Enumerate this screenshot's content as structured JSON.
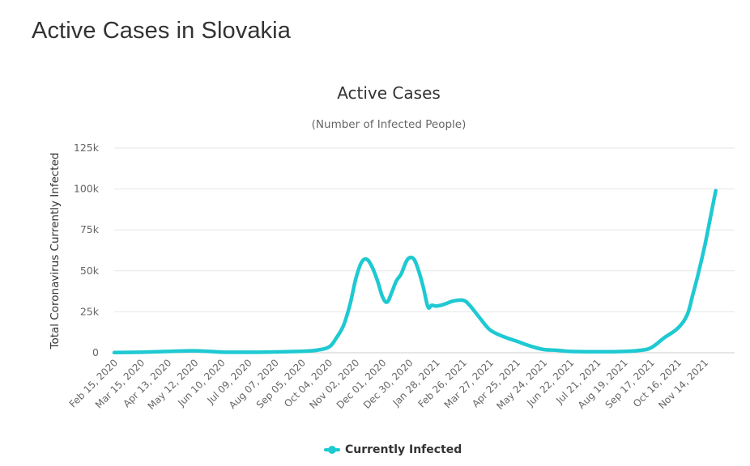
{
  "page": {
    "title": "Active Cases in Slovakia"
  },
  "chart": {
    "title": "Active Cases",
    "subtitle": "(Number of Infected People)",
    "y_axis_title": "Total Coronavirus Currently Infected",
    "legend_label": "Currently Infected",
    "line_color": "#1ec9d2"
  },
  "chart_data": {
    "type": "line",
    "title": "Active Cases",
    "subtitle": "(Number of Infected People)",
    "xlabel": "",
    "ylabel": "Total Coronavirus Currently Infected",
    "ylim": [
      0,
      125000
    ],
    "yticks": [
      0,
      25000,
      50000,
      75000,
      100000,
      125000
    ],
    "ytick_labels": [
      "0",
      "25k",
      "50k",
      "75k",
      "100k",
      "125k"
    ],
    "grid": true,
    "legend_position": "bottom-center",
    "x_tick_labels": [
      "Feb 15, 2020",
      "Mar 15, 2020",
      "Apr 13, 2020",
      "May 12, 2020",
      "Jun 10, 2020",
      "Jul 09, 2020",
      "Aug 07, 2020",
      "Sep 05, 2020",
      "Oct 04, 2020",
      "Nov 02, 2020",
      "Dec 01, 2020",
      "Dec 30, 2020",
      "Jan 28, 2021",
      "Feb 26, 2021",
      "Mar 27, 2021",
      "Apr 25, 2021",
      "May 24, 2021",
      "Jun 22, 2021",
      "Jul 21, 2021",
      "Aug 19, 2021",
      "Sep 17, 2021",
      "Oct 16, 2021",
      "Nov 14, 2021"
    ],
    "series": [
      {
        "name": "Currently Infected",
        "color": "#1ec9d2",
        "x": [
          "Feb 15, 2020",
          "Mar 15, 2020",
          "Apr 13, 2020",
          "May 12, 2020",
          "Jun 10, 2020",
          "Jul 09, 2020",
          "Aug 07, 2020",
          "Sep 05, 2020",
          "Sep 20, 2020",
          "Oct 04, 2020",
          "Oct 12, 2020",
          "Oct 20, 2020",
          "Oct 27, 2020",
          "Nov 02, 2020",
          "Nov 08, 2020",
          "Nov 14, 2020",
          "Nov 20, 2020",
          "Nov 26, 2020",
          "Dec 01, 2020",
          "Dec 06, 2020",
          "Dec 11, 2020",
          "Dec 16, 2020",
          "Dec 21, 2020",
          "Dec 26, 2020",
          "Dec 30, 2020",
          "Jan 04, 2021",
          "Jan 09, 2021",
          "Jan 14, 2021",
          "Jan 19, 2021",
          "Jan 23, 2021",
          "Jan 28, 2021",
          "Feb 05, 2021",
          "Feb 15, 2021",
          "Feb 26, 2021",
          "Mar 05, 2021",
          "Mar 15, 2021",
          "Mar 27, 2021",
          "Apr 10, 2021",
          "Apr 25, 2021",
          "May 10, 2021",
          "May 24, 2021",
          "Jun 08, 2021",
          "Jun 22, 2021",
          "Jul 21, 2021",
          "Aug 19, 2021",
          "Sep 05, 2021",
          "Sep 17, 2021",
          "Oct 01, 2021",
          "Oct 16, 2021",
          "Oct 26, 2021",
          "Nov 01, 2021",
          "Nov 07, 2021",
          "Nov 14, 2021",
          "Nov 20, 2021",
          "Nov 26, 2021"
        ],
        "values": [
          100,
          300,
          800,
          1200,
          400,
          300,
          500,
          900,
          1500,
          3500,
          9000,
          17000,
          30000,
          45000,
          55000,
          57000,
          52000,
          43000,
          34000,
          31000,
          37000,
          44000,
          48000,
          55000,
          58000,
          57000,
          50000,
          40000,
          28000,
          29000,
          28500,
          29500,
          31500,
          32000,
          29000,
          22000,
          14000,
          10000,
          7000,
          4000,
          2000,
          1500,
          800,
          600,
          800,
          1500,
          3000,
          9000,
          15000,
          23000,
          35000,
          48000,
          65000,
          82000,
          99000
        ]
      }
    ]
  }
}
